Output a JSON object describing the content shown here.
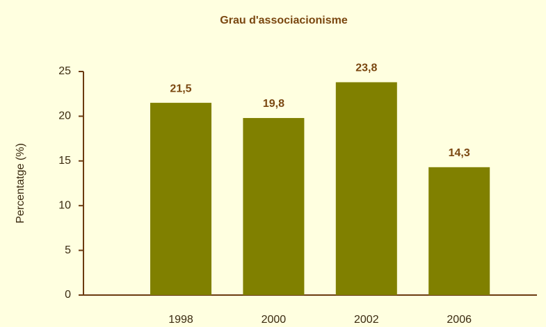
{
  "chart_data": {
    "type": "bar",
    "title": "Grau d'associacionisme",
    "y_label": "Percentatge (%)",
    "categories": [
      "1998",
      "2000",
      "2002",
      "2006"
    ],
    "values": [
      21.5,
      19.8,
      23.8,
      14.3
    ],
    "value_labels": [
      "21,5",
      "19,8",
      "23,8",
      "14,3"
    ],
    "color": "#808000",
    "ylim": [
      0,
      25
    ],
    "yticks": [
      0,
      5,
      10,
      15,
      20,
      25
    ],
    "grid": false
  }
}
